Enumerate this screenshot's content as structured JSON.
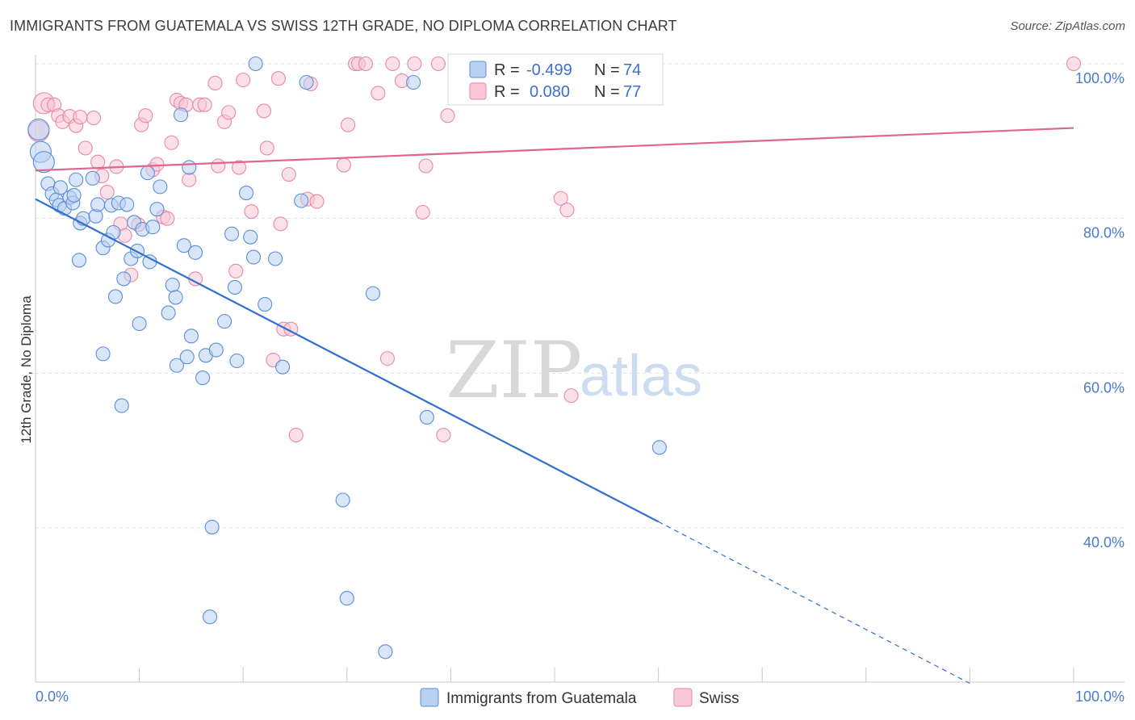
{
  "header": {
    "title": "IMMIGRANTS FROM GUATEMALA VS SWISS 12TH GRADE, NO DIPLOMA CORRELATION CHART",
    "source": "Source: ZipAtlas.com"
  },
  "watermark": {
    "zip": "ZIP",
    "atlas": "atlas"
  },
  "colors": {
    "blue_fill": "#b9d0f2",
    "blue_stroke": "#5b8fd6",
    "blue_line": "#2f6fd0",
    "pink_fill": "#f9c6d5",
    "pink_stroke": "#e58aa6",
    "pink_line": "#e0668f",
    "grid": "#e3e3e3",
    "tick_text": "#4a7cc9"
  },
  "legend": {
    "rows": [
      {
        "r_label": "R =",
        "r_value": "-0.499",
        "n_label": "N =",
        "n_value": "74"
      },
      {
        "r_label": "R =",
        "r_value": "0.080",
        "n_label": "N =",
        "n_value": "77"
      }
    ]
  },
  "chart_data": {
    "type": "scatter",
    "title": "IMMIGRANTS FROM GUATEMALA VS SWISS 12TH GRADE, NO DIPLOMA CORRELATION CHART",
    "xlabel": "",
    "ylabel": "12th Grade, No Diploma",
    "xlim": [
      0,
      100
    ],
    "ylim": [
      20,
      102
    ],
    "x_tick_labels": [
      "0.0%",
      "100.0%"
    ],
    "y_ticks": [
      {
        "value": 40,
        "label": "40.0%"
      },
      {
        "value": 60,
        "label": "60.0%"
      },
      {
        "value": 80,
        "label": "80.0%"
      },
      {
        "value": 100,
        "label": "100.0%"
      }
    ],
    "grid": true,
    "legend_position": "top-center",
    "series": [
      {
        "name": "Immigrants from Guatemala",
        "r": -0.499,
        "n": 74,
        "trend": {
          "x0": 0,
          "y0": 82.5,
          "x1": 60,
          "y1": 40.8,
          "dash_x1": 90,
          "dash_y1": 19.9
        },
        "points": [
          [
            0.3,
            91.5
          ],
          [
            0.5,
            88.6
          ],
          [
            0.8,
            87.3
          ],
          [
            1.2,
            84.5
          ],
          [
            1.6,
            83.2
          ],
          [
            2.0,
            82.4
          ],
          [
            2.4,
            84.0
          ],
          [
            2.3,
            81.7
          ],
          [
            2.8,
            81.3
          ],
          [
            3.3,
            82.7
          ],
          [
            3.6,
            82.0
          ],
          [
            3.7,
            83.0
          ],
          [
            3.9,
            85.0
          ],
          [
            4.2,
            74.6
          ],
          [
            4.3,
            79.4
          ],
          [
            4.6,
            80.0
          ],
          [
            5.5,
            85.2
          ],
          [
            5.8,
            80.3
          ],
          [
            6.0,
            81.8
          ],
          [
            6.5,
            76.2
          ],
          [
            6.5,
            62.5
          ],
          [
            7.0,
            77.2
          ],
          [
            7.3,
            81.7
          ],
          [
            7.5,
            78.2
          ],
          [
            7.7,
            69.9
          ],
          [
            8.0,
            82.0
          ],
          [
            8.3,
            55.8
          ],
          [
            8.5,
            72.2
          ],
          [
            8.8,
            81.8
          ],
          [
            9.2,
            74.8
          ],
          [
            9.5,
            79.5
          ],
          [
            9.8,
            75.8
          ],
          [
            10.0,
            66.4
          ],
          [
            10.3,
            78.6
          ],
          [
            10.8,
            85.9
          ],
          [
            11.0,
            74.4
          ],
          [
            11.3,
            78.9
          ],
          [
            11.7,
            81.2
          ],
          [
            12.0,
            84.1
          ],
          [
            12.8,
            67.8
          ],
          [
            13.2,
            71.4
          ],
          [
            13.5,
            69.8
          ],
          [
            13.6,
            61.0
          ],
          [
            14.0,
            93.4
          ],
          [
            14.3,
            76.5
          ],
          [
            14.6,
            62.1
          ],
          [
            14.8,
            86.6
          ],
          [
            15.0,
            64.8
          ],
          [
            15.4,
            75.6
          ],
          [
            16.1,
            59.4
          ],
          [
            16.4,
            62.3
          ],
          [
            17.0,
            40.1
          ],
          [
            17.4,
            63.0
          ],
          [
            18.2,
            66.7
          ],
          [
            18.9,
            78.0
          ],
          [
            19.2,
            71.1
          ],
          [
            19.4,
            61.6
          ],
          [
            20.3,
            83.3
          ],
          [
            20.7,
            77.6
          ],
          [
            21.0,
            75.0
          ],
          [
            21.2,
            100.0
          ],
          [
            22.1,
            68.9
          ],
          [
            23.1,
            74.8
          ],
          [
            23.8,
            60.8
          ],
          [
            25.6,
            82.3
          ],
          [
            26.1,
            97.6
          ],
          [
            29.6,
            43.6
          ],
          [
            30.0,
            30.9
          ],
          [
            32.5,
            70.3
          ],
          [
            33.7,
            24.0
          ],
          [
            36.4,
            97.6
          ],
          [
            37.7,
            54.3
          ],
          [
            60.1,
            50.4
          ],
          [
            16.8,
            28.5
          ]
        ]
      },
      {
        "name": "Swiss",
        "r": 0.08,
        "n": 77,
        "trend": {
          "x0": 0,
          "y0": 86.2,
          "x1": 100,
          "y1": 91.7
        },
        "points": [
          [
            0.3,
            91.3
          ],
          [
            0.8,
            94.9
          ],
          [
            1.2,
            94.7
          ],
          [
            1.8,
            94.7
          ],
          [
            2.2,
            93.3
          ],
          [
            2.6,
            92.5
          ],
          [
            3.3,
            93.2
          ],
          [
            3.9,
            92.0
          ],
          [
            4.3,
            93.1
          ],
          [
            4.8,
            89.1
          ],
          [
            5.6,
            93.0
          ],
          [
            6.0,
            87.3
          ],
          [
            6.4,
            85.5
          ],
          [
            6.9,
            83.4
          ],
          [
            7.8,
            86.7
          ],
          [
            8.2,
            79.3
          ],
          [
            8.6,
            77.8
          ],
          [
            9.2,
            72.7
          ],
          [
            9.9,
            79.2
          ],
          [
            10.2,
            92.1
          ],
          [
            10.6,
            93.3
          ],
          [
            11.3,
            86.3
          ],
          [
            11.7,
            87.0
          ],
          [
            12.3,
            80.2
          ],
          [
            12.7,
            80.0
          ],
          [
            13.1,
            89.8
          ],
          [
            13.6,
            95.3
          ],
          [
            14.0,
            94.9
          ],
          [
            14.5,
            94.7
          ],
          [
            14.8,
            85.0
          ],
          [
            15.4,
            72.2
          ],
          [
            15.8,
            94.7
          ],
          [
            16.3,
            94.7
          ],
          [
            17.3,
            97.5
          ],
          [
            17.6,
            86.8
          ],
          [
            18.2,
            92.5
          ],
          [
            18.6,
            93.7
          ],
          [
            19.3,
            73.2
          ],
          [
            19.6,
            86.6
          ],
          [
            20.0,
            97.9
          ],
          [
            20.8,
            80.9
          ],
          [
            22.0,
            93.9
          ],
          [
            22.3,
            89.1
          ],
          [
            22.9,
            61.7
          ],
          [
            23.4,
            98.1
          ],
          [
            23.6,
            79.3
          ],
          [
            23.9,
            65.7
          ],
          [
            24.4,
            85.7
          ],
          [
            24.6,
            65.7
          ],
          [
            25.1,
            52.0
          ],
          [
            26.2,
            82.5
          ],
          [
            26.5,
            97.4
          ],
          [
            27.1,
            82.2
          ],
          [
            29.7,
            86.9
          ],
          [
            30.1,
            92.1
          ],
          [
            30.8,
            100.0
          ],
          [
            31.1,
            100.0
          ],
          [
            31.8,
            100.0
          ],
          [
            33.0,
            96.2
          ],
          [
            33.9,
            61.9
          ],
          [
            34.4,
            100.0
          ],
          [
            35.3,
            97.8
          ],
          [
            36.5,
            100.0
          ],
          [
            37.3,
            80.8
          ],
          [
            37.6,
            86.8
          ],
          [
            38.8,
            100.0
          ],
          [
            39.3,
            52.0
          ],
          [
            39.7,
            93.3
          ],
          [
            41.2,
            100.0
          ],
          [
            42.0,
            100.0
          ],
          [
            44.5,
            100.0
          ],
          [
            46.8,
            100.0
          ],
          [
            48.0,
            100.0
          ],
          [
            50.6,
            82.6
          ],
          [
            51.2,
            81.1
          ],
          [
            51.6,
            57.1
          ],
          [
            100.0,
            100.0
          ]
        ]
      }
    ]
  }
}
